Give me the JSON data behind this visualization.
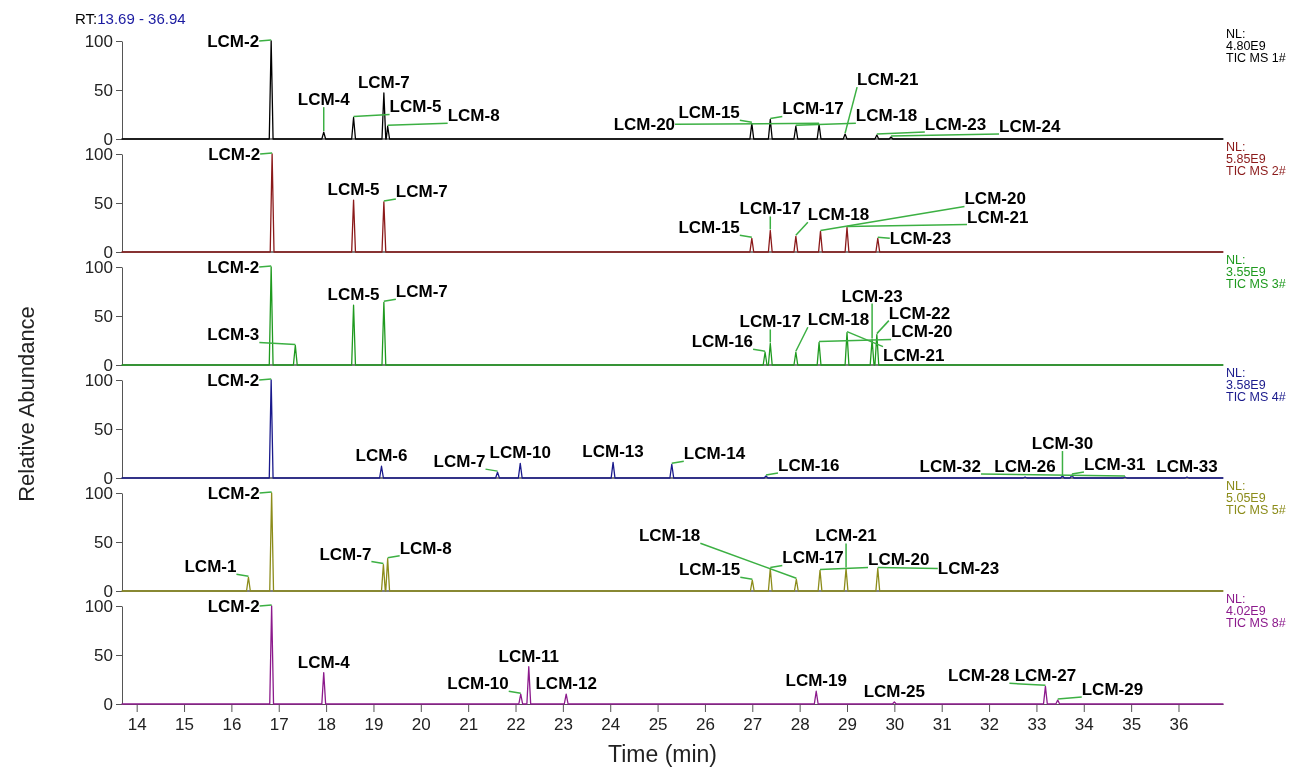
{
  "chart_data": [
    {
      "type": "line",
      "subtitle": "RT:13.69 - 36.94",
      "xlim": [
        13.69,
        36.94
      ],
      "ylim": [
        0,
        100
      ],
      "yticks": [
        0,
        50,
        100
      ],
      "tick_labels": "y",
      "grid": false,
      "legend": false,
      "marker": "none",
      "line_style": "solid",
      "x": [
        13.69,
        16.8,
        16.84,
        16.88,
        17.91,
        17.95,
        17.99,
        18.54,
        18.58,
        18.62,
        19.18,
        19.22,
        19.26,
        19.27,
        19.3,
        19.34,
        26.95,
        26.99,
        27.03,
        27.34,
        27.38,
        27.42,
        27.88,
        27.92,
        27.96,
        28.37,
        28.41,
        28.45,
        28.92,
        28.96,
        29.0,
        29.59,
        29.63,
        29.67,
        29.89,
        29.93,
        29.97,
        36.94
      ],
      "series": [
        {
          "color": "#000000",
          "values": [
            0,
            0,
            100,
            0,
            0,
            7,
            0,
            0,
            22,
            0,
            0,
            47,
            0,
            0,
            13,
            0,
            0,
            16,
            0,
            0,
            20,
            0,
            0,
            13,
            0,
            0,
            15,
            0,
            0,
            5,
            0,
            0,
            4,
            0,
            0,
            2,
            0,
            0
          ]
        }
      ],
      "annotations": [
        "NL:",
        "4.80E9",
        "TIC  MS 1#",
        {
          "text": "LCM-2",
          "x": 16.84,
          "y": 100
        },
        {
          "text": "LCM-4",
          "x": 17.95,
          "y": 7
        },
        {
          "text": "LCM-5",
          "x": 18.58,
          "y": 22
        },
        {
          "text": "LCM-7",
          "x": 19.22,
          "y": 47
        },
        {
          "text": "LCM-8",
          "x": 19.3,
          "y": 13
        },
        {
          "text": "LCM-15",
          "x": 26.99,
          "y": 16
        },
        {
          "text": "LCM-17",
          "x": 27.38,
          "y": 20
        },
        {
          "text": "LCM-18",
          "x": 27.92,
          "y": 13
        },
        {
          "text": "LCM-20",
          "x": 28.41,
          "y": 15
        },
        {
          "text": "LCM-21",
          "x": 28.96,
          "y": 5
        },
        {
          "text": "LCM-23",
          "x": 29.63,
          "y": 4
        },
        {
          "text": "LCM-24",
          "x": 29.93,
          "y": 2
        }
      ]
    },
    {
      "type": "line",
      "xlim": [
        13.69,
        36.94
      ],
      "ylim": [
        0,
        100
      ],
      "yticks": [
        0,
        50,
        100
      ],
      "tick_labels": "y",
      "grid": false,
      "marker": "none",
      "line_style": "solid",
      "legend": false,
      "x": [
        13.69,
        16.82,
        16.86,
        16.9,
        18.54,
        18.58,
        18.62,
        19.18,
        19.22,
        19.26,
        26.95,
        26.99,
        27.03,
        27.34,
        27.38,
        27.42,
        27.88,
        27.92,
        27.96,
        28.4,
        28.44,
        28.48,
        28.96,
        29.0,
        29.04,
        29.61,
        29.65,
        29.69,
        36.94
      ],
      "series": [
        {
          "color": "#8b1a1a",
          "values": [
            0,
            0,
            100,
            0,
            0,
            53,
            0,
            0,
            51,
            0,
            0,
            14,
            0,
            0,
            22,
            0,
            0,
            16,
            0,
            0,
            21,
            0,
            0,
            25,
            0,
            0,
            14,
            0,
            0
          ]
        }
      ],
      "annotations": [
        "NL:",
        "5.85E9",
        "TIC  MS 2#",
        {
          "text": "LCM-2",
          "x": 16.86,
          "y": 100
        },
        {
          "text": "LCM-5",
          "x": 18.58,
          "y": 53
        },
        {
          "text": "LCM-7",
          "x": 19.22,
          "y": 51
        },
        {
          "text": "LCM-15",
          "x": 26.99,
          "y": 14
        },
        {
          "text": "LCM-17",
          "x": 27.38,
          "y": 22
        },
        {
          "text": "LCM-18",
          "x": 27.92,
          "y": 16
        },
        {
          "text": "LCM-20",
          "x": 28.44,
          "y": 21
        },
        {
          "text": "LCM-21",
          "x": 29.0,
          "y": 25
        },
        {
          "text": "LCM-23",
          "x": 29.65,
          "y": 14
        }
      ]
    },
    {
      "type": "line",
      "xlim": [
        13.69,
        36.94
      ],
      "ylim": [
        0,
        100
      ],
      "yticks": [
        0,
        50,
        100
      ],
      "tick_labels": "y",
      "grid": false,
      "marker": "none",
      "line_style": "solid",
      "legend": false,
      "x": [
        13.69,
        16.8,
        16.84,
        16.88,
        17.31,
        17.35,
        17.39,
        18.54,
        18.58,
        18.62,
        19.18,
        19.22,
        19.26,
        27.23,
        27.27,
        27.31,
        27.34,
        27.38,
        27.42,
        27.88,
        27.92,
        27.96,
        28.37,
        28.41,
        28.45,
        28.96,
        29.0,
        29.04,
        29.49,
        29.53,
        29.57,
        29.59,
        29.63,
        29.67,
        36.94
      ],
      "series": [
        {
          "color": "#1f9a1f",
          "values": [
            0,
            0,
            100,
            0,
            0,
            20,
            0,
            0,
            61,
            0,
            0,
            64,
            0,
            0,
            13,
            0,
            0,
            22,
            0,
            0,
            13,
            0,
            0,
            23,
            0,
            0,
            33,
            0,
            0,
            26,
            0,
            0,
            31,
            0,
            0
          ]
        }
      ],
      "annotations": [
        "NL:",
        "3.55E9",
        "TIC  MS 3#",
        {
          "text": "LCM-2",
          "x": 16.84,
          "y": 100
        },
        {
          "text": "LCM-3",
          "x": 17.35,
          "y": 20
        },
        {
          "text": "LCM-5",
          "x": 18.58,
          "y": 61
        },
        {
          "text": "LCM-7",
          "x": 19.22,
          "y": 64
        },
        {
          "text": "LCM-16",
          "x": 27.27,
          "y": 13
        },
        {
          "text": "LCM-17",
          "x": 27.38,
          "y": 22
        },
        {
          "text": "LCM-18",
          "x": 27.92,
          "y": 13
        },
        {
          "text": "LCM-20",
          "x": 28.41,
          "y": 23
        },
        {
          "text": "LCM-21",
          "x": 29.0,
          "y": 33
        },
        {
          "text": "LCM-22",
          "x": 29.63,
          "y": 31
        },
        {
          "text": "LCM-23",
          "x": 29.53,
          "y": 26
        }
      ]
    },
    {
      "type": "line",
      "ylabel": "Relative Abundance",
      "xlim": [
        13.69,
        36.94
      ],
      "ylim": [
        0,
        100
      ],
      "yticks": [
        0,
        50,
        100
      ],
      "tick_labels": "y",
      "grid": false,
      "legend": false,
      "marker": "none",
      "line_style": "solid",
      "x": [
        13.69,
        16.8,
        16.84,
        16.88,
        19.13,
        19.17,
        19.21,
        21.58,
        21.62,
        21.66,
        22.06,
        22.1,
        22.14,
        24.02,
        24.06,
        24.1,
        25.26,
        25.3,
        25.34,
        27.25,
        27.29,
        27.33,
        32.72,
        32.76,
        32.8,
        33.51,
        33.55,
        33.59,
        33.71,
        33.75,
        33.79,
        34.83,
        34.87,
        34.91,
        36.14,
        36.18,
        36.22,
        36.94
      ],
      "series": [
        {
          "color": "#1a1a8c",
          "values": [
            0,
            0,
            100,
            0,
            0,
            12,
            0,
            0,
            6,
            0,
            0,
            15,
            0,
            0,
            16,
            0,
            0,
            14,
            0,
            0,
            2,
            0,
            0,
            1,
            0,
            0,
            2,
            0,
            0,
            3,
            0,
            0,
            1,
            0,
            0,
            1,
            0,
            0
          ]
        }
      ],
      "annotations": [
        "NL:",
        "3.58E9",
        "TIC  MS 4#",
        {
          "text": "LCM-2",
          "x": 16.84,
          "y": 100
        },
        {
          "text": "LCM-6",
          "x": 19.17,
          "y": 12
        },
        {
          "text": "LCM-7",
          "x": 21.62,
          "y": 6
        },
        {
          "text": "LCM-10",
          "x": 22.1,
          "y": 15
        },
        {
          "text": "LCM-13",
          "x": 24.06,
          "y": 16
        },
        {
          "text": "LCM-14",
          "x": 25.3,
          "y": 14
        },
        {
          "text": "LCM-16",
          "x": 27.29,
          "y": 2
        },
        {
          "text": "LCM-26",
          "x": 32.76,
          "y": 1
        },
        {
          "text": "LCM-30",
          "x": 33.55,
          "y": 2
        },
        {
          "text": "LCM-31",
          "x": 33.75,
          "y": 3
        },
        {
          "text": "LCM-32",
          "x": 34.87,
          "y": 1
        },
        {
          "text": "LCM-33",
          "x": 36.18,
          "y": 1
        }
      ]
    },
    {
      "type": "line",
      "xlim": [
        13.69,
        36.94
      ],
      "ylim": [
        0,
        100
      ],
      "yticks": [
        0,
        50,
        100
      ],
      "tick_labels": "y",
      "grid": false,
      "marker": "none",
      "line_style": "solid",
      "legend": false,
      "x": [
        13.69,
        16.32,
        16.36,
        16.4,
        16.81,
        16.85,
        16.89,
        19.17,
        19.21,
        19.25,
        19.26,
        19.3,
        19.34,
        26.96,
        27.0,
        27.04,
        27.34,
        27.38,
        27.42,
        27.89,
        27.93,
        27.97,
        28.39,
        28.43,
        28.47,
        28.94,
        28.98,
        29.02,
        29.61,
        29.65,
        29.69,
        36.94
      ],
      "series": [
        {
          "color": "#8c8c1a",
          "values": [
            0,
            0,
            14,
            0,
            0,
            100,
            0,
            0,
            27,
            0,
            0,
            33,
            0,
            0,
            11,
            0,
            0,
            23,
            0,
            0,
            12,
            0,
            0,
            21,
            0,
            0,
            23,
            0,
            0,
            23,
            0,
            0
          ]
        }
      ],
      "annotations": [
        "NL:",
        "5.05E9",
        "TIC  MS 5#",
        {
          "text": "LCM-1",
          "x": 16.36,
          "y": 14
        },
        {
          "text": "LCM-2",
          "x": 16.85,
          "y": 100
        },
        {
          "text": "LCM-7",
          "x": 19.21,
          "y": 27
        },
        {
          "text": "LCM-8",
          "x": 19.3,
          "y": 33
        },
        {
          "text": "LCM-15",
          "x": 27.0,
          "y": 11
        },
        {
          "text": "LCM-17",
          "x": 27.38,
          "y": 23
        },
        {
          "text": "LCM-18",
          "x": 27.93,
          "y": 12
        },
        {
          "text": "LCM-20",
          "x": 28.43,
          "y": 21
        },
        {
          "text": "LCM-21",
          "x": 28.98,
          "y": 23
        },
        {
          "text": "LCM-23",
          "x": 29.65,
          "y": 23
        }
      ]
    },
    {
      "type": "line",
      "xlabel": "Time (min)",
      "xlim": [
        13.69,
        36.94
      ],
      "ylim": [
        0,
        100
      ],
      "yticks": [
        0,
        50,
        100
      ],
      "xticks": [
        14,
        15,
        16,
        17,
        18,
        19,
        20,
        21,
        22,
        23,
        24,
        25,
        26,
        27,
        28,
        29,
        30,
        31,
        32,
        33,
        34,
        35,
        36
      ],
      "grid": false,
      "legend": false,
      "marker": "none",
      "line_style": "solid",
      "x": [
        13.69,
        16.81,
        16.85,
        16.89,
        17.91,
        17.95,
        17.99,
        22.07,
        22.11,
        22.15,
        22.24,
        22.28,
        22.32,
        23.03,
        23.07,
        23.11,
        28.31,
        28.35,
        28.39,
        29.96,
        30.0,
        30.04,
        33.15,
        33.19,
        33.23,
        33.41,
        33.45,
        33.49,
        36.94
      ],
      "series": [
        {
          "color": "#8c1a8c",
          "values": [
            0,
            0,
            100,
            0,
            0,
            32,
            0,
            0,
            10,
            0,
            0,
            38,
            0,
            0,
            10,
            0,
            0,
            13,
            0,
            0,
            2,
            0,
            0,
            18,
            0,
            0,
            4,
            0,
            0
          ]
        }
      ],
      "annotations": [
        "NL:",
        "4.02E9",
        "TIC  MS 8#",
        {
          "text": "LCM-2",
          "x": 16.85,
          "y": 100
        },
        {
          "text": "LCM-4",
          "x": 17.95,
          "y": 32
        },
        {
          "text": "LCM-10",
          "x": 22.11,
          "y": 10
        },
        {
          "text": "LCM-11",
          "x": 22.28,
          "y": 38
        },
        {
          "text": "LCM-12",
          "x": 23.07,
          "y": 10
        },
        {
          "text": "LCM-19",
          "x": 28.35,
          "y": 13
        },
        {
          "text": "LCM-25",
          "x": 30.0,
          "y": 2
        },
        {
          "text": "LCM-27",
          "x": 33.19,
          "y": 18
        },
        {
          "text": "LCM-28",
          "x": 33.19,
          "y": 18
        },
        {
          "text": "LCM-29",
          "x": 33.45,
          "y": 4
        }
      ]
    }
  ]
}
